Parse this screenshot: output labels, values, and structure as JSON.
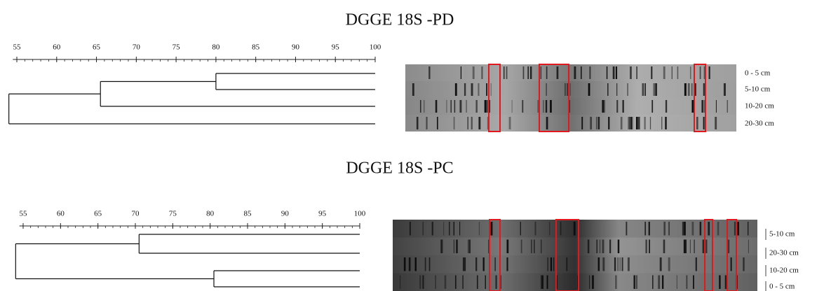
{
  "panels": [
    {
      "title": "DGGE 18S -PD",
      "xlim": [
        54.5,
        100
      ],
      "xticks": [
        55,
        60,
        65,
        70,
        75,
        80,
        85,
        90,
        95,
        100
      ],
      "tree": {
        "height": 54,
        "children": [
          {
            "height": 65.5,
            "children": [
              {
                "height": 80,
                "children": [
                  "0 - 5 cm",
                  "5-10  cm"
                ]
              },
              "10-20 cm"
            ]
          },
          "20-30 cm"
        ]
      }
    },
    {
      "title": "DGGE 18S -PC",
      "xlim": [
        54.5,
        100
      ],
      "xticks": [
        55,
        60,
        65,
        70,
        75,
        80,
        85,
        90,
        95,
        100
      ],
      "tree": {
        "height": 54,
        "children": [
          {
            "height": 70.5,
            "children": [
              "5-10  cm",
              "20-30 cm"
            ]
          },
          {
            "height": 80.5,
            "children": [
              "10-20 cm",
              "0 - 5 cm"
            ]
          }
        ]
      }
    }
  ]
}
